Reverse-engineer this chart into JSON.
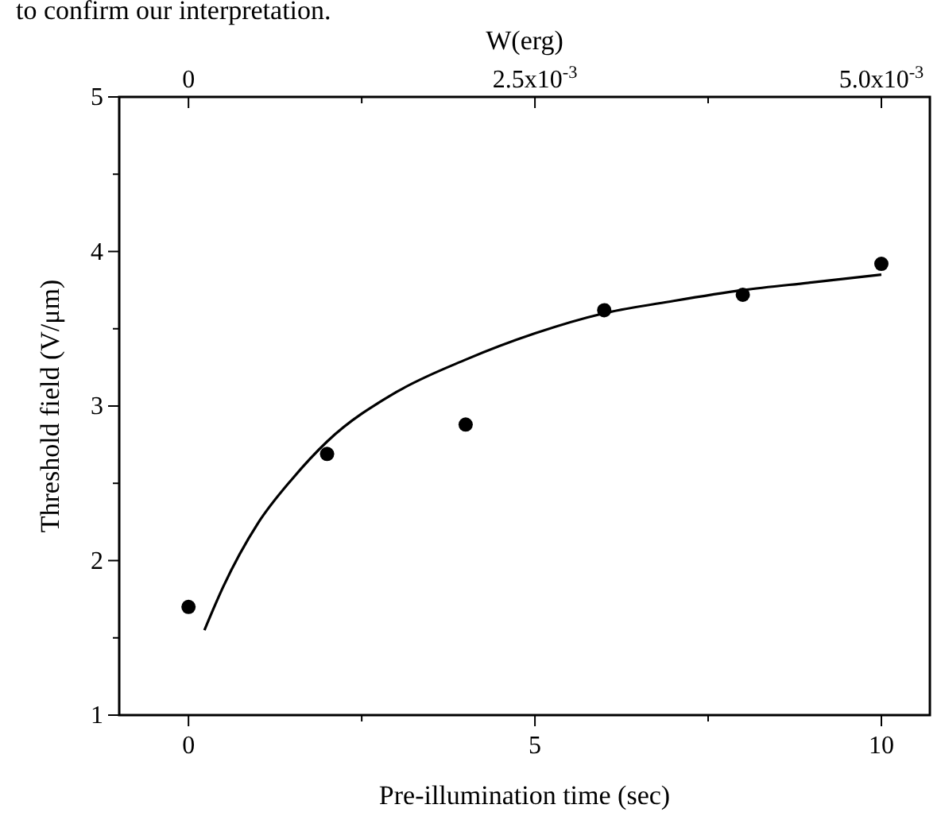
{
  "chart_data": {
    "type": "scatter",
    "xlabel": "Pre-illumination time (sec)",
    "ylabel": "Threshold field (V/μm)",
    "x2label": "W(erg)",
    "annotations": [
      "to confirm our interpretation."
    ],
    "xlim": [
      -1,
      10.7
    ],
    "xticks": [
      0,
      {
        "value": 2.5,
        "label": null
      },
      5,
      {
        "value": 7.5,
        "label": null
      },
      10
    ],
    "x2lim": [
      -0.0005,
      0.00535
    ],
    "x2ticks": [
      {
        "value": 0,
        "label": "0"
      },
      {
        "value": 0.00125,
        "label": null
      },
      {
        "value": 0.0025,
        "label": "2.5x10$^{-3}$"
      },
      {
        "value": 0.00375,
        "label": null
      },
      {
        "value": 0.005,
        "label": "5.0x10$^{-3}$"
      }
    ],
    "ylim": [
      1,
      5
    ],
    "yticks": [
      1,
      {
        "value": 1.5,
        "label": null
      },
      2,
      {
        "value": 2.5,
        "label": null
      },
      3,
      {
        "value": 3.5,
        "label": null
      },
      4,
      {
        "value": 4.5,
        "label": null
      },
      5
    ],
    "series": [
      {
        "color": "#000000",
        "marker": "circle",
        "x": [
          0,
          2,
          4,
          6,
          8,
          10
        ],
        "values": [
          1.7,
          2.69,
          2.88,
          3.62,
          3.72,
          3.92
        ]
      },
      {
        "type": "line",
        "marker": "none",
        "color": "#000000",
        "x": [
          0.23,
          0.5,
          1,
          1.5,
          2,
          3,
          4,
          5,
          6,
          7,
          8,
          9,
          10
        ],
        "values": [
          1.55,
          1.83,
          2.24,
          2.53,
          2.77,
          3.09,
          3.3,
          3.47,
          3.6,
          3.68,
          3.75,
          3.8,
          3.85
        ]
      }
    ]
  }
}
